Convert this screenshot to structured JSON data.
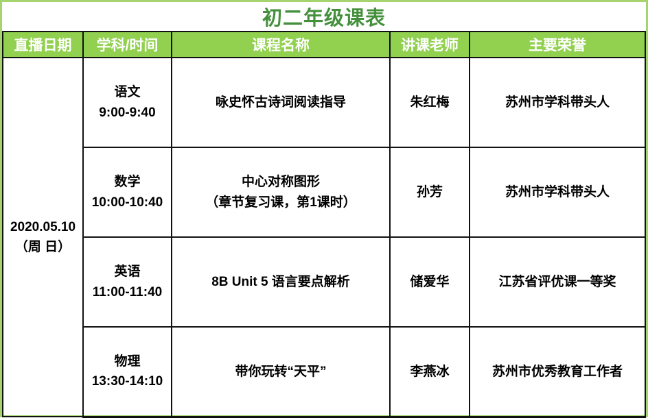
{
  "page": {
    "title": "初二年级课表"
  },
  "colors": {
    "title_green": "#44903c",
    "header_background": "#92d050",
    "header_text": "#ffffff",
    "cell_text": "#000000",
    "grid_border": "#111111",
    "outer_frame": "#a5d46e"
  },
  "table": {
    "headers": [
      "直播日期",
      "学科/时间",
      "课程名称",
      "讲课老师",
      "主要荣誉"
    ],
    "date": {
      "line1": "2020.05.10",
      "line2": "（周 日）"
    },
    "rows": [
      {
        "subject": "语文",
        "time": "9:00-9:40",
        "course_line1": "咏史怀古诗词阅读指导",
        "course_line2": "",
        "teacher": "朱红梅",
        "honor": "苏州市学科带头人"
      },
      {
        "subject": "数学",
        "time": "10:00-10:40",
        "course_line1": "中心对称图形",
        "course_line2": "（章节复习课，第1课时）",
        "teacher": "孙芳",
        "honor": "苏州市学科带头人"
      },
      {
        "subject": "英语",
        "time": "11:00-11:40",
        "course_line1": "8B Unit 5 语言要点解析",
        "course_line2": "",
        "teacher": "储爱华",
        "honor": "江苏省评优课一等奖"
      },
      {
        "subject": "物理",
        "time": "13:30-14:10",
        "course_line1": "带你玩转“天平”",
        "course_line2": "",
        "teacher": "李燕冰",
        "honor": "苏州市优秀教育工作者"
      }
    ]
  }
}
